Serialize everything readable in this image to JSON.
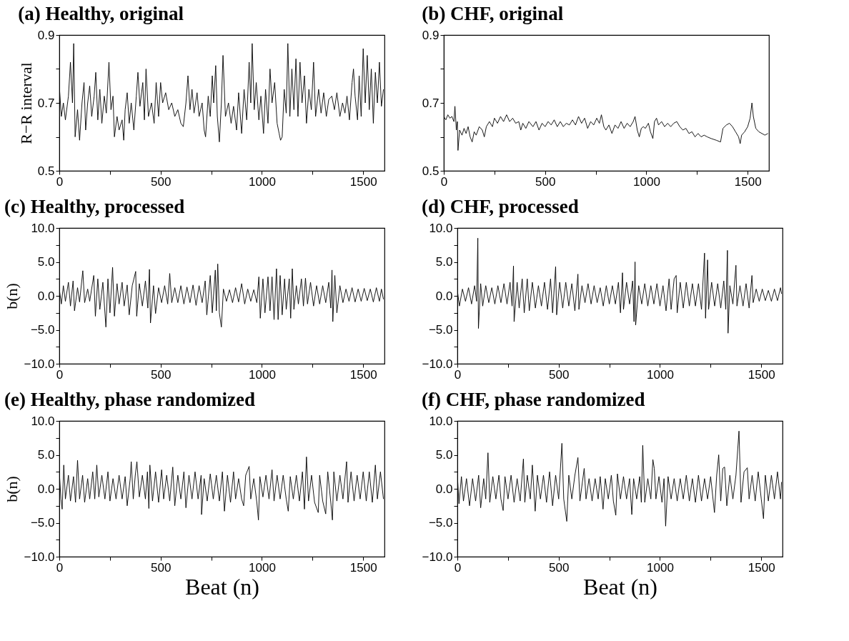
{
  "chart_data": [
    {
      "type": "line",
      "title": "(a) Healthy, original",
      "ylabel": "R−R interval",
      "xlim": [
        0,
        1605
      ],
      "xticks": [
        0,
        {
          "value": 250,
          "label": null
        },
        500,
        {
          "value": 750,
          "label": null
        },
        1000,
        {
          "value": 1250,
          "label": null
        },
        1500
      ],
      "ylim": [
        0.5,
        0.9
      ],
      "yticks": [
        0.5,
        {
          "value": 0.6,
          "label": null
        },
        0.7,
        {
          "value": 0.8,
          "label": null
        },
        0.9
      ],
      "x": [
        0,
        10,
        20,
        30,
        45,
        55,
        65,
        71,
        78,
        90,
        100,
        112,
        122,
        130,
        140,
        150,
        160,
        172,
        180,
        190,
        200,
        210,
        222,
        232,
        245,
        255,
        265,
        272,
        285,
        295,
        310,
        318,
        325,
        335,
        345,
        355,
        368,
        380,
        388,
        398,
        412,
        420,
        428,
        440,
        455,
        468,
        478,
        490,
        500,
        510,
        525,
        540,
        555,
        570,
        585,
        600,
        612,
        625,
        635,
        645,
        655,
        665,
        680,
        690,
        705,
        715,
        722,
        735,
        745,
        755,
        762,
        772,
        780,
        790,
        800,
        808,
        820,
        835,
        848,
        860,
        875,
        885,
        900,
        912,
        925,
        937,
        945,
        952,
        962,
        972,
        985,
        995,
        1008,
        1018,
        1030,
        1040,
        1050,
        1063,
        1075,
        1085,
        1092,
        1100,
        1110,
        1120,
        1128,
        1138,
        1148,
        1158,
        1168,
        1178,
        1188,
        1198,
        1210,
        1220,
        1232,
        1244,
        1255,
        1265,
        1280,
        1292,
        1305,
        1318,
        1330,
        1345,
        1358,
        1370,
        1385,
        1398,
        1410,
        1420,
        1432,
        1445,
        1452,
        1460,
        1472,
        1480,
        1490,
        1500,
        1510,
        1520,
        1530,
        1540,
        1550,
        1560,
        1570,
        1580,
        1590,
        1600
      ],
      "series": [
        {
          "color": "#000000",
          "values": [
            0.75,
            0.66,
            0.7,
            0.65,
            0.72,
            0.82,
            0.7,
            0.875,
            0.6,
            0.68,
            0.59,
            0.7,
            0.76,
            0.62,
            0.7,
            0.75,
            0.66,
            0.72,
            0.79,
            0.65,
            0.74,
            0.64,
            0.72,
            0.67,
            0.82,
            0.68,
            0.72,
            0.6,
            0.66,
            0.62,
            0.65,
            0.59,
            0.68,
            0.73,
            0.64,
            0.7,
            0.62,
            0.72,
            0.79,
            0.69,
            0.76,
            0.65,
            0.8,
            0.66,
            0.7,
            0.64,
            0.76,
            0.66,
            0.76,
            0.7,
            0.73,
            0.68,
            0.7,
            0.66,
            0.68,
            0.64,
            0.63,
            0.7,
            0.78,
            0.68,
            0.74,
            0.67,
            0.73,
            0.66,
            0.7,
            0.62,
            0.6,
            0.72,
            0.66,
            0.78,
            0.7,
            0.81,
            0.66,
            0.585,
            0.7,
            0.84,
            0.66,
            0.7,
            0.64,
            0.69,
            0.62,
            0.73,
            0.61,
            0.74,
            0.65,
            0.82,
            0.7,
            0.875,
            0.68,
            0.76,
            0.65,
            0.72,
            0.61,
            0.74,
            0.64,
            0.8,
            0.7,
            0.76,
            0.64,
            0.61,
            0.59,
            0.6,
            0.74,
            0.67,
            0.875,
            0.66,
            0.8,
            0.68,
            0.83,
            0.66,
            0.82,
            0.7,
            0.78,
            0.64,
            0.74,
            0.68,
            0.82,
            0.66,
            0.74,
            0.67,
            0.73,
            0.66,
            0.71,
            0.72,
            0.68,
            0.73,
            0.66,
            0.7,
            0.67,
            0.72,
            0.65,
            0.76,
            0.8,
            0.72,
            0.65,
            0.78,
            0.66,
            0.86,
            0.7,
            0.84,
            0.68,
            0.8,
            0.64,
            0.79,
            0.7,
            0.82,
            0.69,
            0.74
          ]
        }
      ]
    },
    {
      "type": "line",
      "title": "(b) CHF, original",
      "xlim": [
        0,
        1605
      ],
      "xticks": [
        0,
        {
          "value": 250,
          "label": null
        },
        500,
        {
          "value": 750,
          "label": null
        },
        1000,
        {
          "value": 1250,
          "label": null
        },
        1500
      ],
      "ylim": [
        0.5,
        0.9
      ],
      "yticks": [
        0.5,
        {
          "value": 0.6,
          "label": null
        },
        0.7,
        {
          "value": 0.8,
          "label": null
        },
        0.9
      ],
      "x": [
        0,
        10,
        20,
        30,
        40,
        50,
        55,
        62,
        67,
        70,
        78,
        90,
        100,
        110,
        120,
        130,
        140,
        150,
        160,
        175,
        190,
        200,
        210,
        225,
        240,
        250,
        265,
        280,
        295,
        310,
        325,
        340,
        355,
        370,
        380,
        390,
        405,
        420,
        440,
        455,
        470,
        485,
        500,
        515,
        530,
        545,
        560,
        575,
        590,
        605,
        620,
        635,
        650,
        665,
        680,
        695,
        710,
        725,
        740,
        755,
        768,
        778,
        790,
        800,
        815,
        830,
        845,
        860,
        875,
        890,
        905,
        920,
        935,
        944,
        955,
        965,
        975,
        985,
        995,
        1010,
        1020,
        1032,
        1040,
        1050,
        1060,
        1075,
        1090,
        1105,
        1120,
        1135,
        1150,
        1165,
        1180,
        1195,
        1210,
        1225,
        1240,
        1255,
        1270,
        1285,
        1300,
        1320,
        1345,
        1366,
        1378,
        1395,
        1410,
        1425,
        1440,
        1455,
        1463,
        1470,
        1485,
        1500,
        1512,
        1521,
        1528,
        1540,
        1555,
        1570,
        1585,
        1600
      ],
      "series": [
        {
          "color": "#000000",
          "values": [
            0.66,
            0.65,
            0.665,
            0.655,
            0.66,
            0.645,
            0.69,
            0.62,
            0.645,
            0.56,
            0.62,
            0.605,
            0.625,
            0.61,
            0.63,
            0.6,
            0.585,
            0.615,
            0.605,
            0.63,
            0.62,
            0.6,
            0.63,
            0.645,
            0.63,
            0.655,
            0.64,
            0.66,
            0.645,
            0.665,
            0.645,
            0.655,
            0.64,
            0.645,
            0.62,
            0.64,
            0.625,
            0.645,
            0.63,
            0.645,
            0.62,
            0.64,
            0.63,
            0.645,
            0.635,
            0.65,
            0.63,
            0.645,
            0.63,
            0.64,
            0.635,
            0.65,
            0.635,
            0.66,
            0.64,
            0.655,
            0.625,
            0.645,
            0.635,
            0.655,
            0.64,
            0.665,
            0.63,
            0.62,
            0.635,
            0.61,
            0.635,
            0.625,
            0.645,
            0.625,
            0.64,
            0.63,
            0.645,
            0.66,
            0.62,
            0.6,
            0.625,
            0.63,
            0.625,
            0.64,
            0.615,
            0.595,
            0.645,
            0.655,
            0.635,
            0.645,
            0.63,
            0.64,
            0.63,
            0.64,
            0.645,
            0.63,
            0.62,
            0.625,
            0.61,
            0.615,
            0.6,
            0.61,
            0.6,
            0.605,
            0.6,
            0.595,
            0.59,
            0.585,
            0.625,
            0.635,
            0.64,
            0.63,
            0.615,
            0.6,
            0.58,
            0.605,
            0.615,
            0.63,
            0.655,
            0.7,
            0.66,
            0.625,
            0.615,
            0.61,
            0.605,
            0.61
          ]
        }
      ]
    },
    {
      "type": "line",
      "title": "(c) Healthy, processed",
      "ylabel": "b(n)",
      "xlim": [
        0,
        1605
      ],
      "xticks": [
        0,
        {
          "value": 250,
          "label": null
        },
        500,
        {
          "value": 750,
          "label": null
        },
        1000,
        {
          "value": 1250,
          "label": null
        },
        1500
      ],
      "ylim": [
        -10,
        10
      ],
      "yticks": [
        {
          "value": -10,
          "label": "−10.0"
        },
        {
          "value": -7.5,
          "label": null
        },
        {
          "value": -5,
          "label": "−5.0"
        },
        {
          "value": -2.5,
          "label": null
        },
        {
          "value": 0,
          "label": "0.0"
        },
        {
          "value": 2.5,
          "label": null
        },
        {
          "value": 5,
          "label": "5.0"
        },
        {
          "value": 7.5,
          "label": null
        },
        {
          "value": 10,
          "label": "10.0"
        }
      ],
      "x": [
        0,
        10,
        20,
        30,
        45,
        55,
        68,
        75,
        90,
        100,
        116,
        125,
        140,
        150,
        170,
        178,
        190,
        200,
        215,
        230,
        240,
        250,
        263,
        272,
        285,
        295,
        310,
        320,
        335,
        345,
        360,
        377,
        382,
        395,
        410,
        425,
        437,
        445,
        450,
        465,
        475,
        490,
        505,
        520,
        535,
        545,
        555,
        570,
        585,
        600,
        615,
        630,
        645,
        660,
        675,
        690,
        705,
        720,
        728,
        745,
        755,
        770,
        775,
        782,
        790,
        800,
        810,
        825,
        840,
        855,
        870,
        885,
        900,
        915,
        930,
        945,
        960,
        975,
        985,
        992,
        1005,
        1015,
        1030,
        1040,
        1050,
        1060,
        1072,
        1080,
        1090,
        1100,
        1112,
        1120,
        1135,
        1142,
        1150,
        1158,
        1170,
        1180,
        1195,
        1205,
        1215,
        1225,
        1240,
        1255,
        1270,
        1285,
        1300,
        1315,
        1330,
        1340,
        1346,
        1350,
        1360,
        1370,
        1385,
        1400,
        1415,
        1430,
        1445,
        1460,
        1475,
        1490,
        1505,
        1520,
        1535,
        1550,
        1565,
        1580,
        1590,
        1600
      ],
      "series": [
        {
          "color": "#000000",
          "values": [
            1.0,
            -1.2,
            1.5,
            -0.8,
            2.0,
            -1.5,
            2.2,
            -2.2,
            1.2,
            -0.9,
            3.7,
            -1.0,
            1.0,
            -0.8,
            3.0,
            -3.0,
            2.5,
            -2.0,
            2.0,
            -4.6,
            2.5,
            -2.5,
            4.2,
            -3.0,
            1.8,
            -1.2,
            2.0,
            -1.5,
            1.6,
            -2.8,
            1.5,
            3.6,
            -3.0,
            1.8,
            -1.5,
            2.2,
            -1.8,
            3.9,
            -4.0,
            1.5,
            -2.6,
            1.2,
            -1.0,
            1.5,
            -1.2,
            3.3,
            -1.0,
            1.2,
            -1.0,
            1.5,
            -1.2,
            1.3,
            -1.0,
            1.6,
            -1.4,
            1.5,
            -1.0,
            2.2,
            -2.8,
            3.0,
            -2.5,
            3.8,
            -2.2,
            4.7,
            -2.5,
            -4.6,
            1.0,
            -0.8,
            0.9,
            -1.0,
            1.2,
            -0.9,
            1.8,
            -1.2,
            1.0,
            -0.8,
            0.9,
            -1.0,
            2.8,
            -3.3,
            2.5,
            -2.5,
            2.8,
            -2.2,
            2.8,
            -3.5,
            4.0,
            -3.5,
            3.0,
            -2.8,
            2.5,
            -2.0,
            2.5,
            -3.3,
            4.0,
            -2.0,
            1.5,
            -1.2,
            2.5,
            -1.5,
            2.6,
            -1.2,
            2.0,
            -1.5,
            1.5,
            -1.2,
            1.5,
            -1.0,
            2.0,
            -1.8,
            3.8,
            -3.8,
            3.0,
            -2.5,
            1.5,
            -1.0,
            1.0,
            -0.8,
            1.2,
            -0.9,
            1.0,
            -0.8,
            1.1,
            -0.7,
            1.0,
            -0.9,
            1.2,
            -0.8,
            1.0,
            -0.5
          ]
        }
      ]
    },
    {
      "type": "line",
      "title": "(d) CHF, processed",
      "xlim": [
        0,
        1605
      ],
      "xticks": [
        0,
        {
          "value": 250,
          "label": null
        },
        500,
        {
          "value": 750,
          "label": null
        },
        1000,
        {
          "value": 1250,
          "label": null
        },
        1500
      ],
      "ylim": [
        -10,
        10
      ],
      "yticks": [
        {
          "value": -10,
          "label": "−10.0"
        },
        {
          "value": -7.5,
          "label": null
        },
        {
          "value": -5,
          "label": "−5.0"
        },
        {
          "value": -2.5,
          "label": null
        },
        {
          "value": 0,
          "label": "0.0"
        },
        {
          "value": 2.5,
          "label": null
        },
        {
          "value": 5,
          "label": "5.0"
        },
        {
          "value": 7.5,
          "label": null
        },
        {
          "value": 10,
          "label": "10.0"
        }
      ],
      "x": [
        0,
        10,
        25,
        40,
        55,
        70,
        85,
        95,
        101,
        104,
        115,
        125,
        140,
        155,
        170,
        185,
        200,
        215,
        230,
        245,
        260,
        270,
        277,
        280,
        295,
        305,
        320,
        330,
        345,
        355,
        370,
        385,
        400,
        415,
        430,
        445,
        460,
        470,
        485,
        490,
        505,
        520,
        535,
        550,
        565,
        580,
        595,
        600,
        615,
        630,
        645,
        660,
        675,
        690,
        705,
        720,
        735,
        750,
        765,
        780,
        795,
        805,
        815,
        820,
        835,
        850,
        865,
        872,
        877,
        880,
        895,
        910,
        925,
        940,
        955,
        970,
        985,
        1000,
        1015,
        1030,
        1045,
        1055,
        1070,
        1080,
        1085,
        1100,
        1115,
        1130,
        1145,
        1160,
        1175,
        1190,
        1205,
        1220,
        1225,
        1235,
        1240,
        1255,
        1270,
        1285,
        1300,
        1315,
        1325,
        1333,
        1336,
        1345,
        1360,
        1375,
        1380,
        1395,
        1410,
        1425,
        1440,
        1454,
        1460,
        1475,
        1490,
        1505,
        1520,
        1535,
        1550,
        1565,
        1580,
        1595,
        1600
      ],
      "series": [
        {
          "color": "#000000",
          "values": [
            0.8,
            -1.5,
            1.0,
            -0.8,
            1.2,
            -1.2,
            1.5,
            -0.8,
            8.5,
            -4.8,
            1.8,
            -1.5,
            1.5,
            -1.0,
            1.2,
            -1.2,
            1.5,
            -1.0,
            1.8,
            -1.2,
            2.0,
            -1.5,
            4.4,
            -3.8,
            2.0,
            -1.8,
            2.5,
            -2.5,
            2.5,
            -2.2,
            2.0,
            -1.8,
            1.5,
            -1.5,
            2.0,
            -2.0,
            2.5,
            -2.5,
            4.3,
            -2.8,
            2.0,
            -1.8,
            2.0,
            -1.5,
            1.8,
            -2.2,
            3.2,
            -2.0,
            1.5,
            -1.0,
            1.8,
            -1.2,
            1.5,
            -1.0,
            1.2,
            -1.5,
            1.5,
            -1.2,
            1.5,
            -1.2,
            2.0,
            -2.5,
            3.4,
            -2.0,
            2.0,
            -1.2,
            2.2,
            -3.8,
            5.0,
            -4.3,
            1.5,
            -1.2,
            1.8,
            -1.5,
            1.5,
            -1.2,
            1.8,
            -1.5,
            1.5,
            -2.2,
            2.5,
            -2.0,
            2.5,
            3.0,
            -2.5,
            2.0,
            -1.8,
            2.0,
            -1.5,
            1.8,
            -1.5,
            1.8,
            -2.0,
            6.3,
            -3.3,
            5.3,
            -2.0,
            2.0,
            -1.5,
            1.8,
            -1.8,
            2.2,
            -2.0,
            6.7,
            -5.5,
            1.5,
            -1.2,
            4.5,
            -1.5,
            1.5,
            -1.5,
            1.8,
            -1.8,
            3.0,
            -1.0,
            1.0,
            -0.8,
            1.0,
            -0.7,
            0.8,
            -0.8,
            1.0,
            -0.7,
            1.2,
            0.3
          ]
        }
      ]
    },
    {
      "type": "line",
      "title": "(e) Healthy, phase randomized",
      "ylabel": "b(n)",
      "xlabel": "Beat (n)",
      "xlim": [
        0,
        1605
      ],
      "xticks": [
        0,
        {
          "value": 250,
          "label": null
        },
        500,
        {
          "value": 750,
          "label": null
        },
        1000,
        {
          "value": 1250,
          "label": null
        },
        1500
      ],
      "ylim": [
        -10,
        10
      ],
      "yticks": [
        {
          "value": -10,
          "label": "−10.0"
        },
        {
          "value": -7.5,
          "label": null
        },
        {
          "value": -5,
          "label": "−5.0"
        },
        {
          "value": -2.5,
          "label": null
        },
        {
          "value": 0,
          "label": "0.0"
        },
        {
          "value": 2.5,
          "label": null
        },
        {
          "value": 5,
          "label": "5.0"
        },
        {
          "value": 7.5,
          "label": null
        },
        {
          "value": 10,
          "label": "10.0"
        }
      ],
      "x": [
        0,
        8,
        14,
        22,
        30,
        45,
        55,
        70,
        80,
        90,
        100,
        115,
        125,
        140,
        150,
        165,
        175,
        185,
        195,
        210,
        225,
        240,
        250,
        265,
        280,
        295,
        310,
        325,
        335,
        350,
        355,
        365,
        375,
        383,
        395,
        410,
        425,
        435,
        442,
        447,
        460,
        475,
        490,
        505,
        515,
        530,
        545,
        560,
        570,
        585,
        600,
        615,
        625,
        640,
        655,
        670,
        685,
        700,
        702,
        715,
        730,
        745,
        760,
        775,
        790,
        805,
        815,
        830,
        845,
        860,
        870,
        885,
        900,
        910,
        920,
        937,
        945,
        960,
        975,
        983,
        990,
        1005,
        1020,
        1035,
        1050,
        1060,
        1075,
        1090,
        1105,
        1120,
        1130,
        1140,
        1155,
        1170,
        1185,
        1200,
        1210,
        1220,
        1230,
        1245,
        1260,
        1278,
        1285,
        1300,
        1315,
        1325,
        1340,
        1348,
        1355,
        1370,
        1385,
        1400,
        1418,
        1425,
        1440,
        1455,
        1470,
        1485,
        1500,
        1515,
        1530,
        1545,
        1560,
        1570,
        1585,
        1600
      ],
      "series": [
        {
          "color": "#000000",
          "values": [
            2.5,
            -1.5,
            -3.0,
            3.5,
            -1.5,
            2.0,
            -1.8,
            1.8,
            -2.0,
            4.2,
            -1.5,
            2.0,
            -2.0,
            1.5,
            -1.5,
            2.5,
            -1.5,
            3.5,
            -1.2,
            2.0,
            -1.5,
            2.5,
            -1.8,
            1.5,
            -1.5,
            2.0,
            -1.5,
            1.8,
            -2.5,
            1.5,
            4.0,
            -1.5,
            2.0,
            4.0,
            -1.2,
            2.0,
            -1.5,
            2.5,
            -2.9,
            3.5,
            -1.8,
            2.5,
            -2.0,
            2.8,
            -1.5,
            2.0,
            -1.8,
            3.2,
            -2.5,
            2.0,
            -1.5,
            2.5,
            -2.8,
            2.0,
            -1.5,
            2.5,
            -1.5,
            2.0,
            -3.8,
            1.5,
            -1.8,
            2.2,
            -1.5,
            2.0,
            -1.8,
            2.5,
            -3.3,
            2.0,
            -2.0,
            2.5,
            -1.5,
            1.5,
            -1.5,
            -2.5,
            2.0,
            3.3,
            -1.5,
            1.5,
            -2.0,
            -4.6,
            1.8,
            -1.2,
            2.0,
            -1.5,
            2.8,
            -1.8,
            2.0,
            -1.5,
            2.0,
            -1.5,
            -3.3,
            1.8,
            -1.5,
            2.0,
            -1.8,
            2.5,
            -3.0,
            4.7,
            -1.8,
            2.0,
            -2.0,
            -3.5,
            2.0,
            -1.8,
            -3.7,
            2.5,
            -2.0,
            -4.6,
            2.5,
            -1.8,
            2.0,
            -1.5,
            4.0,
            -2.0,
            2.5,
            -1.8,
            2.0,
            -1.5,
            2.5,
            -1.8,
            2.5,
            -2.0,
            3.5,
            -1.5,
            2.5,
            -1.5
          ]
        }
      ]
    },
    {
      "type": "line",
      "title": "(f) CHF, phase randomized",
      "xlabel": "Beat (n)",
      "xlim": [
        0,
        1605
      ],
      "xticks": [
        0,
        {
          "value": 250,
          "label": null
        },
        500,
        {
          "value": 750,
          "label": null
        },
        1000,
        {
          "value": 1250,
          "label": null
        },
        1500
      ],
      "ylim": [
        -10,
        10
      ],
      "yticks": [
        {
          "value": -10,
          "label": "−10.0"
        },
        {
          "value": -7.5,
          "label": null
        },
        {
          "value": -5,
          "label": "−5.0"
        },
        {
          "value": -2.5,
          "label": null
        },
        {
          "value": 0,
          "label": "0.0"
        },
        {
          "value": 2.5,
          "label": null
        },
        {
          "value": 5,
          "label": "5.0"
        },
        {
          "value": 7.5,
          "label": null
        },
        {
          "value": 10,
          "label": "10.0"
        }
      ],
      "x": [
        0,
        8,
        20,
        30,
        45,
        60,
        75,
        90,
        105,
        115,
        130,
        140,
        151,
        160,
        175,
        190,
        205,
        215,
        226,
        235,
        250,
        265,
        280,
        295,
        310,
        326,
        333,
        345,
        360,
        370,
        384,
        395,
        410,
        425,
        440,
        455,
        470,
        485,
        500,
        516,
        525,
        540,
        550,
        565,
        580,
        595,
        605,
        626,
        635,
        650,
        665,
        680,
        695,
        705,
        719,
        730,
        745,
        760,
        770,
        782,
        790,
        805,
        820,
        835,
        850,
        861,
        870,
        885,
        900,
        908,
        915,
        925,
        940,
        955,
        965,
        972,
        980,
        995,
        1010,
        1020,
        1028,
        1040,
        1055,
        1070,
        1085,
        1100,
        1115,
        1130,
        1145,
        1160,
        1175,
        1190,
        1205,
        1220,
        1235,
        1250,
        1269,
        1280,
        1290,
        1300,
        1310,
        1319,
        1330,
        1345,
        1360,
        1375,
        1390,
        1400,
        1415,
        1431,
        1440,
        1455,
        1470,
        1485,
        1500,
        1511,
        1520,
        1535,
        1550,
        1565,
        1580,
        1595,
        1600
      ],
      "series": [
        {
          "color": "#000000",
          "values": [
            2.0,
            -2.2,
            1.8,
            -1.8,
            1.5,
            -2.5,
            1.5,
            -1.8,
            2.0,
            -2.8,
            1.5,
            -1.5,
            5.3,
            -2.0,
            1.8,
            -1.5,
            2.0,
            -1.5,
            -3.2,
            1.8,
            -1.5,
            2.0,
            -2.0,
            1.5,
            -1.8,
            4.4,
            -2.0,
            2.0,
            -1.5,
            3.5,
            -3.3,
            2.0,
            -1.5,
            2.0,
            -2.0,
            2.5,
            -2.5,
            2.0,
            -1.5,
            6.7,
            -1.5,
            -4.8,
            2.0,
            -1.5,
            2.0,
            4.6,
            -1.8,
            3.0,
            -1.5,
            1.5,
            -1.8,
            1.5,
            -1.5,
            1.8,
            -3.0,
            1.5,
            -1.5,
            2.0,
            -1.8,
            -3.9,
            2.2,
            -1.5,
            1.8,
            -1.5,
            1.5,
            -3.8,
            1.5,
            -1.5,
            1.8,
            -2.0,
            6.4,
            -2.0,
            1.5,
            -1.5,
            4.3,
            3.0,
            -1.5,
            1.8,
            -2.0,
            1.5,
            -5.5,
            1.8,
            -1.5,
            1.5,
            -1.8,
            1.5,
            -1.5,
            2.0,
            -1.8,
            1.5,
            -2.0,
            2.0,
            -1.8,
            1.5,
            -1.5,
            1.8,
            -3.5,
            2.0,
            5.0,
            -1.8,
            3.0,
            3.2,
            -2.5,
            2.0,
            -1.5,
            2.0,
            8.5,
            -2.0,
            2.5,
            3.1,
            -1.5,
            2.0,
            -1.8,
            2.5,
            -1.5,
            -4.4,
            2.0,
            -1.8,
            2.0,
            -1.5,
            2.5,
            -1.5,
            1.0
          ]
        }
      ]
    }
  ]
}
